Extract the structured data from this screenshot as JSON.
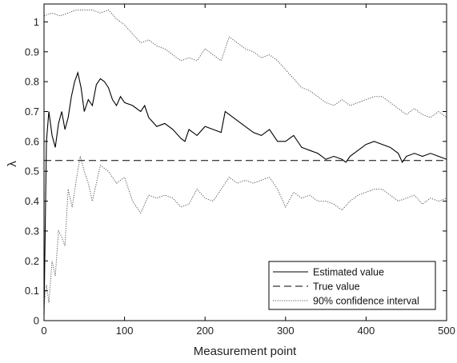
{
  "chart_data": {
    "type": "line",
    "title": "",
    "xlabel": "Measurement point",
    "ylabel": "λ",
    "xlim": [
      0,
      500
    ],
    "ylim": [
      0,
      1.06
    ],
    "xticks": [
      0,
      100,
      200,
      300,
      400,
      500
    ],
    "yticks": [
      0,
      0.1,
      0.2,
      0.3,
      0.4,
      0.5,
      0.6,
      0.7,
      0.8,
      0.9,
      1
    ],
    "ytick_labels": [
      "0",
      "0.1",
      "0.2",
      "0.3",
      "0.4",
      "0.5",
      "0.6",
      "0.7",
      "0.8",
      "0.9",
      "1"
    ],
    "grid": false,
    "legend_position": "bottom-right",
    "series": [
      {
        "name": "Estimated value",
        "style": "solid",
        "color": "#000000",
        "x": [
          0,
          3,
          6,
          10,
          14,
          18,
          22,
          26,
          30,
          34,
          38,
          42,
          46,
          50,
          55,
          60,
          65,
          70,
          75,
          80,
          85,
          90,
          95,
          100,
          110,
          120,
          125,
          130,
          140,
          150,
          160,
          170,
          175,
          180,
          190,
          200,
          210,
          220,
          225,
          230,
          240,
          250,
          260,
          270,
          280,
          290,
          300,
          310,
          320,
          330,
          340,
          350,
          360,
          370,
          375,
          380,
          390,
          400,
          410,
          420,
          430,
          440,
          445,
          450,
          460,
          470,
          480,
          490,
          500
        ],
        "y": [
          0.02,
          0.6,
          0.7,
          0.62,
          0.58,
          0.66,
          0.7,
          0.64,
          0.68,
          0.75,
          0.8,
          0.83,
          0.78,
          0.7,
          0.74,
          0.72,
          0.79,
          0.81,
          0.8,
          0.78,
          0.74,
          0.72,
          0.75,
          0.73,
          0.72,
          0.7,
          0.72,
          0.68,
          0.65,
          0.66,
          0.64,
          0.61,
          0.6,
          0.64,
          0.62,
          0.65,
          0.64,
          0.63,
          0.7,
          0.69,
          0.67,
          0.65,
          0.63,
          0.62,
          0.64,
          0.6,
          0.6,
          0.62,
          0.58,
          0.57,
          0.56,
          0.54,
          0.55,
          0.54,
          0.53,
          0.55,
          0.57,
          0.59,
          0.6,
          0.59,
          0.58,
          0.56,
          0.53,
          0.55,
          0.56,
          0.55,
          0.56,
          0.55,
          0.54
        ]
      },
      {
        "name": "True value",
        "style": "dashed",
        "color": "#000000",
        "x": [
          0,
          500
        ],
        "y": [
          0.536,
          0.536
        ]
      },
      {
        "name": "90% confidence interval",
        "style": "dotted",
        "color": "#555555",
        "x": [
          0,
          10,
          20,
          30,
          40,
          50,
          60,
          70,
          80,
          90,
          100,
          110,
          120,
          130,
          140,
          150,
          160,
          170,
          180,
          190,
          200,
          210,
          220,
          230,
          240,
          250,
          260,
          270,
          280,
          290,
          300,
          310,
          320,
          330,
          340,
          350,
          360,
          370,
          380,
          390,
          400,
          410,
          420,
          430,
          440,
          450,
          460,
          470,
          480,
          490,
          500
        ],
        "y": [
          1.02,
          1.03,
          1.02,
          1.03,
          1.04,
          1.04,
          1.04,
          1.03,
          1.04,
          1.01,
          0.99,
          0.96,
          0.93,
          0.94,
          0.92,
          0.91,
          0.89,
          0.87,
          0.88,
          0.87,
          0.91,
          0.89,
          0.87,
          0.95,
          0.93,
          0.91,
          0.9,
          0.88,
          0.89,
          0.87,
          0.84,
          0.81,
          0.78,
          0.77,
          0.75,
          0.73,
          0.72,
          0.74,
          0.72,
          0.73,
          0.74,
          0.75,
          0.75,
          0.73,
          0.71,
          0.69,
          0.71,
          0.69,
          0.68,
          0.7,
          0.68
        ]
      },
      {
        "name": "90% confidence interval (lower)",
        "style": "dotted",
        "color": "#555555",
        "x": [
          0,
          3,
          6,
          10,
          14,
          18,
          22,
          26,
          30,
          35,
          40,
          45,
          50,
          55,
          60,
          70,
          80,
          90,
          100,
          110,
          120,
          130,
          140,
          150,
          160,
          170,
          180,
          190,
          200,
          210,
          220,
          230,
          240,
          250,
          260,
          270,
          280,
          290,
          300,
          310,
          320,
          330,
          340,
          350,
          360,
          370,
          380,
          390,
          400,
          410,
          420,
          430,
          440,
          450,
          460,
          470,
          480,
          490,
          500
        ],
        "y": [
          0.05,
          0.12,
          0.06,
          0.2,
          0.15,
          0.3,
          0.28,
          0.25,
          0.44,
          0.38,
          0.47,
          0.55,
          0.5,
          0.46,
          0.4,
          0.52,
          0.5,
          0.46,
          0.48,
          0.4,
          0.36,
          0.42,
          0.41,
          0.42,
          0.41,
          0.38,
          0.39,
          0.44,
          0.41,
          0.4,
          0.44,
          0.48,
          0.46,
          0.47,
          0.46,
          0.47,
          0.48,
          0.44,
          0.38,
          0.43,
          0.41,
          0.42,
          0.4,
          0.4,
          0.39,
          0.37,
          0.4,
          0.42,
          0.43,
          0.44,
          0.44,
          0.42,
          0.4,
          0.41,
          0.42,
          0.39,
          0.41,
          0.4,
          0.41
        ]
      }
    ]
  }
}
